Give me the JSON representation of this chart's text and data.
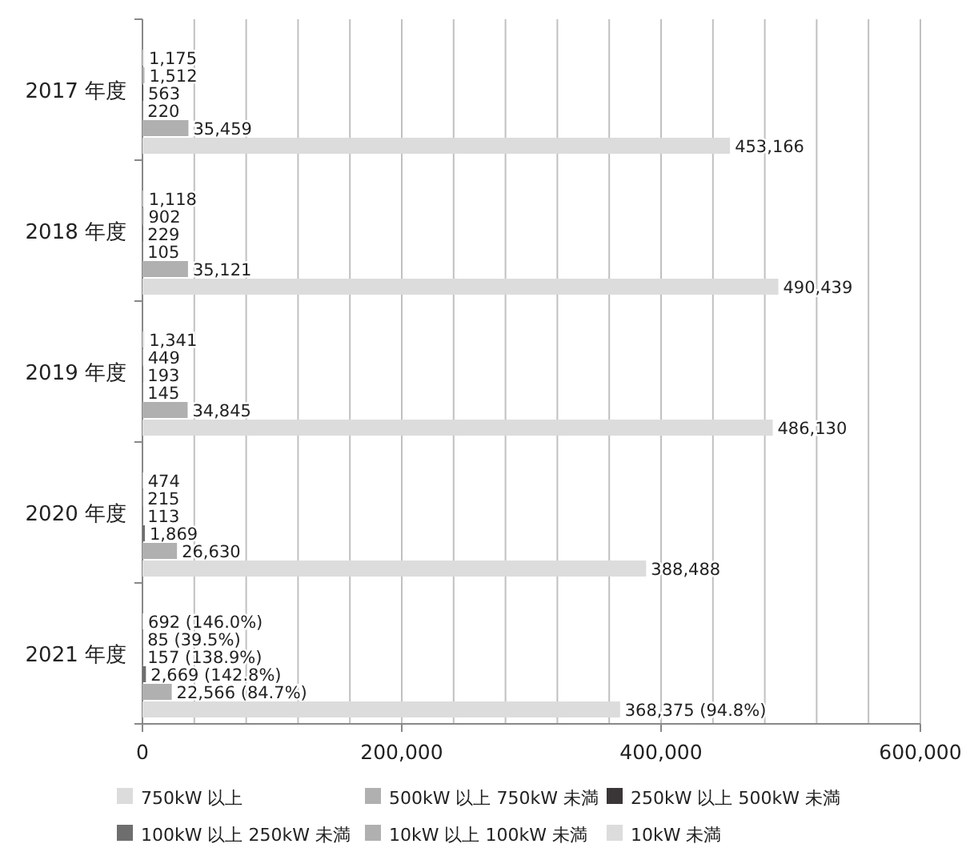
{
  "chart_data": {
    "type": "bar",
    "orientation": "horizontal",
    "categories": [
      "2017 年度",
      "2018 年度",
      "2019 年度",
      "2020 年度",
      "2021 年度"
    ],
    "series": [
      {
        "name": "750kW 以上",
        "color": "#dcdcdc",
        "values": [
          1175,
          1118,
          1341,
          474,
          692
        ],
        "value_labels": [
          "1,175",
          "1,118",
          "1,341",
          "474",
          "692 (146.0%)"
        ]
      },
      {
        "name": "500kW 以上 750kW 未満",
        "color": "#b0b0b0",
        "values": [
          1512,
          902,
          449,
          215,
          85
        ],
        "value_labels": [
          "1,512",
          "902",
          "449",
          "215",
          "85 (39.5%)"
        ]
      },
      {
        "name": "250kW 以上 500kW 未満",
        "color": "#3a3536",
        "values": [
          563,
          229,
          193,
          113,
          157
        ],
        "value_labels": [
          "563",
          "229",
          "193",
          "113",
          "157 (138.9%)"
        ]
      },
      {
        "name": "100kW 以上 250kW 未満",
        "color": "#6e6e6e",
        "values": [
          220,
          105,
          145,
          1869,
          2669
        ],
        "value_labels": [
          "220",
          "105",
          "145",
          "1,869",
          "2,669 (142.8%)"
        ]
      },
      {
        "name": "10kW 以上 100kW 未満",
        "color": "#b0b0b0",
        "values": [
          35459,
          35121,
          34845,
          26630,
          22566
        ],
        "value_labels": [
          "35,459",
          "35,121",
          "34,845",
          "26,630",
          "22,566 (84.7%)"
        ]
      },
      {
        "name": "10kW 未満",
        "color": "#dcdcdc",
        "values": [
          453166,
          490439,
          486130,
          388488,
          368375
        ],
        "value_labels": [
          "453,166",
          "490,439",
          "486,130",
          "388,488",
          "368,375 (94.8%)"
        ]
      }
    ],
    "xlim": [
      0,
      600000
    ],
    "xticks": [
      0,
      {
        "value": 40000,
        "label": null
      },
      {
        "value": 80000,
        "label": null
      },
      {
        "value": 120000,
        "label": null
      },
      {
        "value": 160000,
        "label": null
      },
      {
        "value": 200000,
        "label": "200,000"
      },
      {
        "value": 240000,
        "label": null
      },
      {
        "value": 280000,
        "label": null
      },
      {
        "value": 320000,
        "label": null
      },
      {
        "value": 360000,
        "label": null
      },
      {
        "value": 400000,
        "label": "400,000"
      },
      {
        "value": 440000,
        "label": null
      },
      {
        "value": 480000,
        "label": null
      },
      {
        "value": 520000,
        "label": null
      },
      {
        "value": 560000,
        "label": null
      },
      {
        "value": 600000,
        "label": "600,000"
      }
    ],
    "grid": "x",
    "legend": "bottom"
  }
}
